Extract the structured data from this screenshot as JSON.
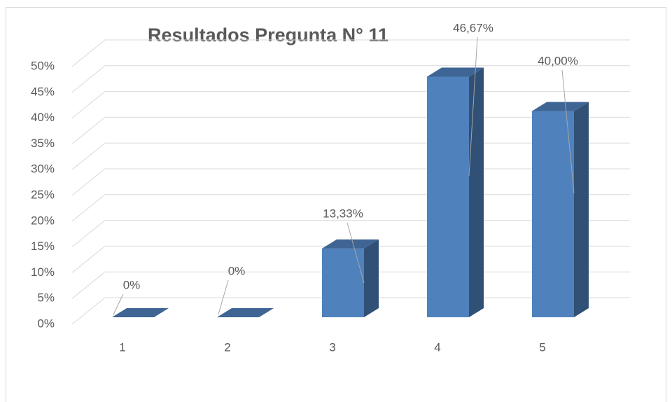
{
  "chart_data": {
    "type": "bar3d",
    "title": "Resultados Pregunta N° 11",
    "categories": [
      "1",
      "2",
      "3",
      "4",
      "5"
    ],
    "values": [
      0,
      0,
      13.33,
      46.67,
      40
    ],
    "value_labels": [
      "0%",
      "0%",
      "13,33%",
      "46,67%",
      "40,00%"
    ],
    "color": "#4f81bd",
    "ylim": [
      0,
      50
    ],
    "yticks": [
      {
        "value": 0,
        "label": "0%"
      },
      {
        "value": 5,
        "label": "5%"
      },
      {
        "value": 10,
        "label": "10%"
      },
      {
        "value": 15,
        "label": "15%"
      },
      {
        "value": 20,
        "label": "20%"
      },
      {
        "value": 25,
        "label": "25%"
      },
      {
        "value": 30,
        "label": "30%"
      },
      {
        "value": 35,
        "label": "35%"
      },
      {
        "value": 40,
        "label": "40%"
      },
      {
        "value": 45,
        "label": "45%"
      },
      {
        "value": 50,
        "label": "50%"
      }
    ],
    "grid": true
  }
}
